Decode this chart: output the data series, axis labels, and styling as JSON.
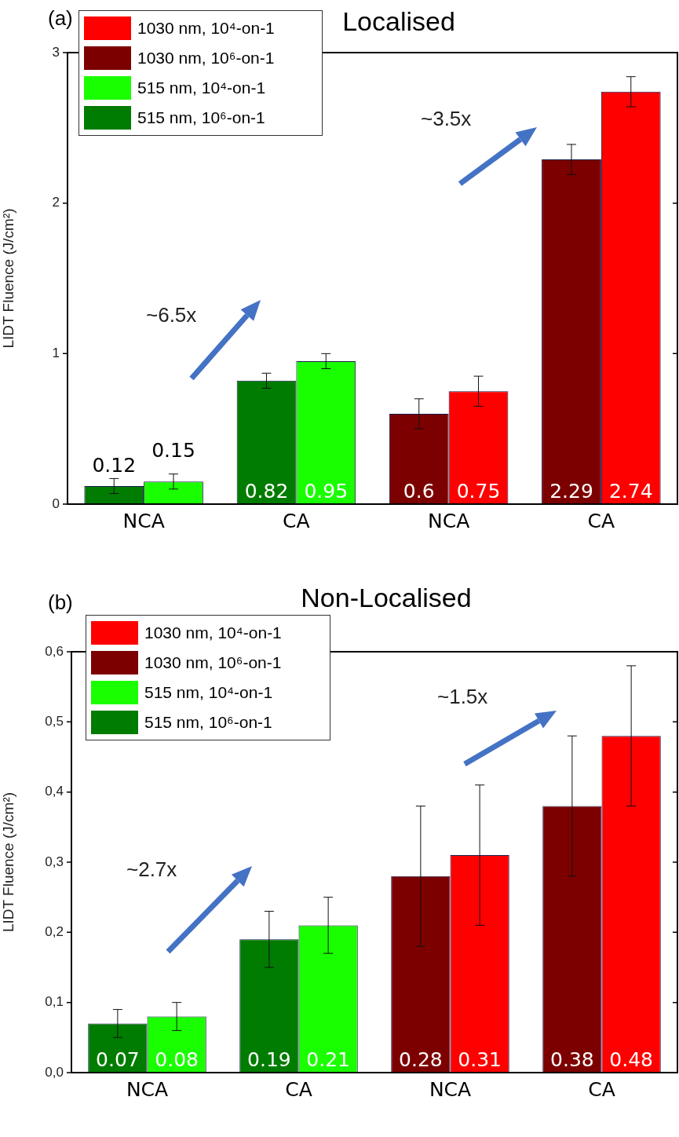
{
  "chart_data": [
    {
      "type": "bar",
      "title": "Localised",
      "ylabel": "LIDT Fluence (J/cm²)",
      "categories": [
        "NCA",
        "CA",
        "NCA",
        "CA"
      ],
      "series": [
        {
          "name": "1030 nm, 10⁴-on-1",
          "color": "#ff0000",
          "values": [
            null,
            null,
            0.75,
            2.74
          ],
          "errors": [
            null,
            null,
            0.1,
            0.1
          ]
        },
        {
          "name": "1030 nm, 10⁶-on-1",
          "color": "#7d0000",
          "values": [
            null,
            null,
            0.6,
            2.29
          ],
          "errors": [
            null,
            null,
            0.1,
            0.1
          ]
        },
        {
          "name": "515 nm, 10⁴-on-1",
          "color": "#1aff00",
          "values": [
            0.15,
            0.95,
            null,
            null
          ],
          "errors": [
            0.05,
            0.05,
            null,
            null
          ]
        },
        {
          "name": "515 nm, 10⁶-on-1",
          "color": "#007c00",
          "values": [
            0.12,
            0.82,
            null,
            null
          ],
          "errors": [
            0.05,
            0.05,
            null,
            null
          ]
        }
      ],
      "ylim": [
        0,
        3
      ],
      "yticks": [
        0,
        1,
        2,
        3
      ],
      "grid": false,
      "legend": "top left",
      "data_labels": true,
      "annotations": [
        "(a)",
        "~6.5x",
        "~3.5x"
      ]
    },
    {
      "type": "bar",
      "title": "Non-Localised",
      "ylabel": "LIDT Fluence (J/cm²)",
      "categories": [
        "NCA",
        "CA",
        "NCA",
        "CA"
      ],
      "series": [
        {
          "name": "1030 nm, 10⁴-on-1",
          "color": "#ff0000",
          "values": [
            null,
            null,
            0.31,
            0.48
          ],
          "errors": [
            null,
            null,
            0.1,
            0.1
          ]
        },
        {
          "name": "1030 nm, 10⁶-on-1",
          "color": "#7d0000",
          "values": [
            null,
            null,
            0.28,
            0.38
          ],
          "errors": [
            null,
            null,
            0.1,
            0.1
          ]
        },
        {
          "name": "515 nm, 10⁴-on-1",
          "color": "#1aff00",
          "values": [
            0.08,
            0.21,
            null,
            null
          ],
          "errors": [
            0.02,
            0.04,
            null,
            null
          ]
        },
        {
          "name": "515 nm, 10⁶-on-1",
          "color": "#007c00",
          "values": [
            0.07,
            0.19,
            null,
            null
          ],
          "errors": [
            0.02,
            0.04,
            null,
            null
          ]
        }
      ],
      "ylim": [
        0,
        0.6
      ],
      "yticks": [
        {
          "value": 0,
          "label": "0,0"
        },
        {
          "value": 0.1,
          "label": "0,1"
        },
        {
          "value": 0.2,
          "label": "0,2"
        },
        {
          "value": 0.3,
          "label": "0,3"
        },
        {
          "value": 0.4,
          "label": "0,4"
        },
        {
          "value": 0.5,
          "label": "0,5"
        },
        {
          "value": 0.6,
          "label": "0,6"
        }
      ],
      "grid": false,
      "legend": "top left",
      "data_labels": true,
      "annotations": [
        "(b)",
        "~2.7x",
        "~1.5x"
      ]
    }
  ]
}
